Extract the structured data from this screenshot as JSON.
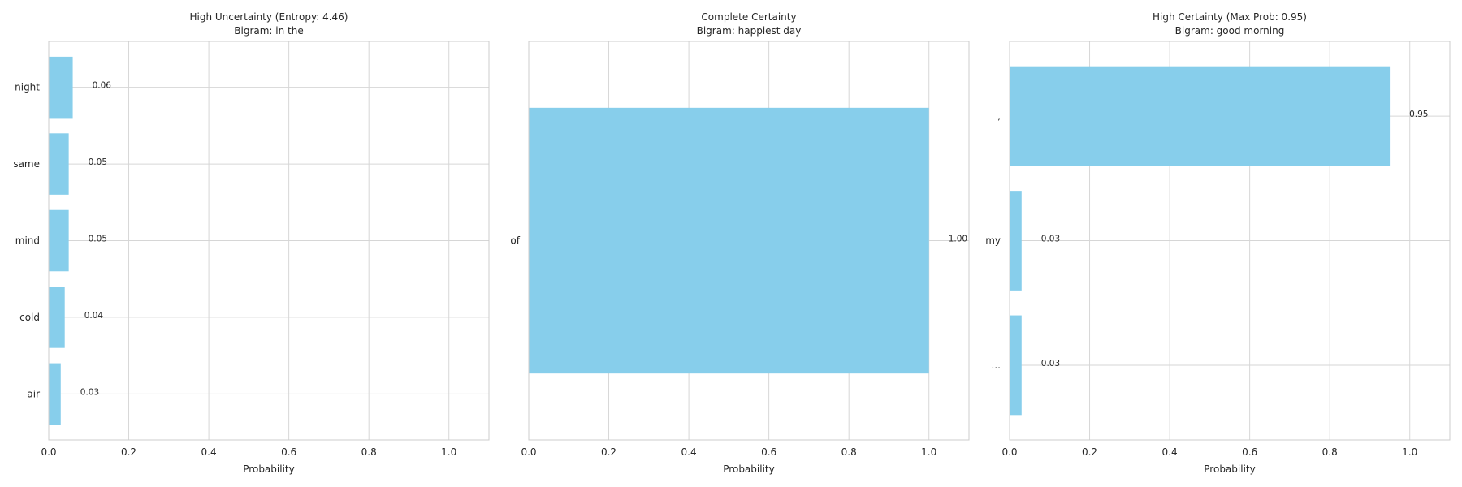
{
  "chart_data": [
    {
      "type": "bar",
      "orientation": "horizontal",
      "title": "High Uncertainty (Entropy: 4.46)",
      "subtitle": "Bigram: in the",
      "categories": [
        "night",
        "same",
        "mind",
        "cold",
        "air"
      ],
      "values": [
        0.06,
        0.05,
        0.05,
        0.04,
        0.03
      ],
      "value_labels": [
        "0.06",
        "0.05",
        "0.05",
        "0.04",
        "0.03"
      ],
      "xlabel": "Probability",
      "ylabel": "",
      "xlim": [
        0,
        1.1
      ],
      "xticks": [
        0.0,
        0.2,
        0.4,
        0.6,
        0.8,
        1.0
      ],
      "xtick_labels": [
        "0.0",
        "0.2",
        "0.4",
        "0.6",
        "0.8",
        "1.0"
      ],
      "grid": true,
      "bar_color": "#87ceeb"
    },
    {
      "type": "bar",
      "orientation": "horizontal",
      "title": "Complete Certainty",
      "subtitle": "Bigram: happiest day",
      "categories": [
        "of"
      ],
      "values": [
        1.0
      ],
      "value_labels": [
        "1.00"
      ],
      "xlabel": "Probability",
      "ylabel": "",
      "xlim": [
        0,
        1.1
      ],
      "xticks": [
        0.0,
        0.2,
        0.4,
        0.6,
        0.8,
        1.0
      ],
      "xtick_labels": [
        "0.0",
        "0.2",
        "0.4",
        "0.6",
        "0.8",
        "1.0"
      ],
      "grid": true,
      "bar_color": "#87ceeb"
    },
    {
      "type": "bar",
      "orientation": "horizontal",
      "title": "High Certainty (Max Prob: 0.95)",
      "subtitle": "Bigram: good morning",
      "categories": [
        ",",
        "my",
        "..."
      ],
      "values": [
        0.95,
        0.03,
        0.03
      ],
      "value_labels": [
        "0.95",
        "0.03",
        "0.03"
      ],
      "xlabel": "Probability",
      "ylabel": "",
      "xlim": [
        0,
        1.1
      ],
      "xticks": [
        0.0,
        0.2,
        0.4,
        0.6,
        0.8,
        1.0
      ],
      "xtick_labels": [
        "0.0",
        "0.2",
        "0.4",
        "0.6",
        "0.8",
        "1.0"
      ],
      "grid": true,
      "bar_color": "#87ceeb"
    }
  ],
  "style": {
    "grid_color": "#d6d6d6",
    "spine_color": "#cccccc",
    "text_color": "#262626"
  }
}
